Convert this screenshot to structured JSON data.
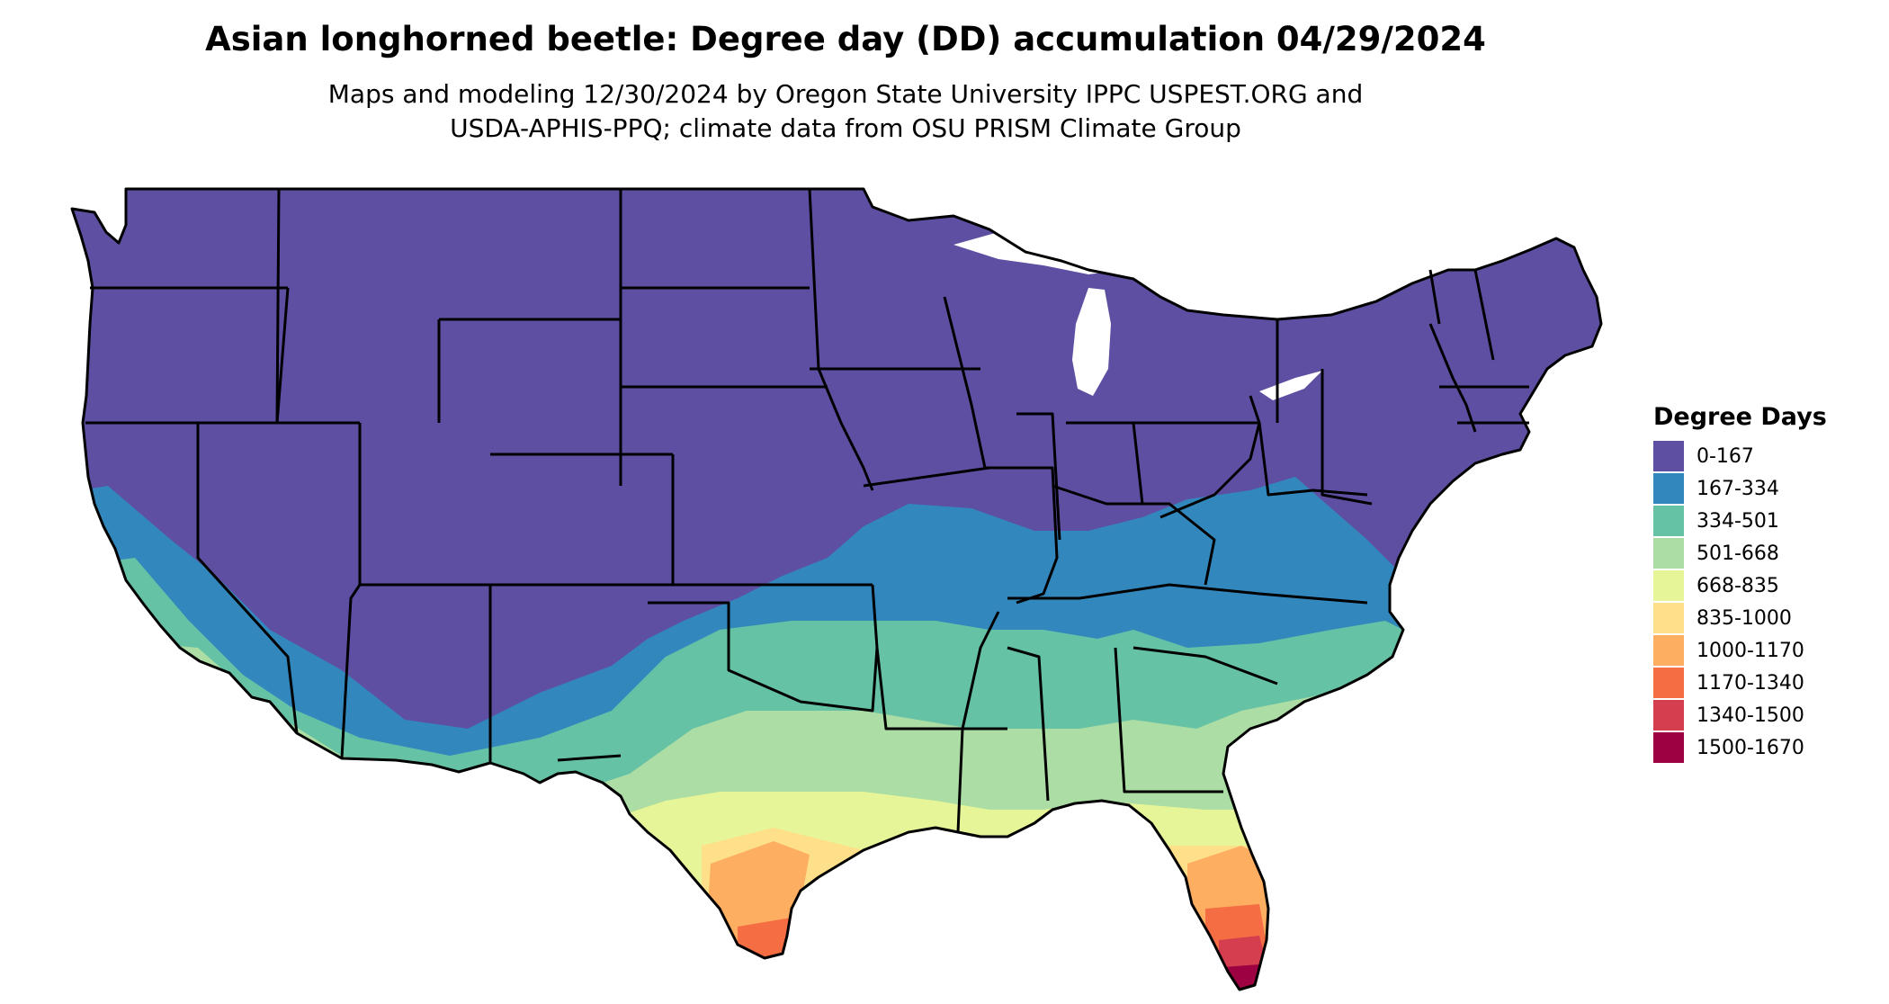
{
  "header": {
    "title": "Asian longhorned beetle: Degree day (DD) accumulation 04/29/2024",
    "subtitle_line1": "Maps and modeling 12/30/2024 by Oregon State University IPPC USPEST.ORG and",
    "subtitle_line2": "USDA-APHIS-PPQ; climate data from OSU PRISM Climate Group"
  },
  "legend": {
    "title": "Degree Days",
    "items": [
      {
        "label": "0-167",
        "color": "#5E4FA2"
      },
      {
        "label": "167-334",
        "color": "#3288BD"
      },
      {
        "label": "334-501",
        "color": "#66C2A5"
      },
      {
        "label": "501-668",
        "color": "#ABDDA4"
      },
      {
        "label": "668-835",
        "color": "#E6F598"
      },
      {
        "label": "835-1000",
        "color": "#FEE08B"
      },
      {
        "label": "1000-1170",
        "color": "#FDAE61"
      },
      {
        "label": "1170-1340",
        "color": "#F46D43"
      },
      {
        "label": "1340-1500",
        "color": "#D53E4F"
      },
      {
        "label": "1500-1670",
        "color": "#9E0142"
      }
    ]
  },
  "map": {
    "region": "contiguous-united-states",
    "border_color": "#000000",
    "water_color": "#ffffff"
  }
}
